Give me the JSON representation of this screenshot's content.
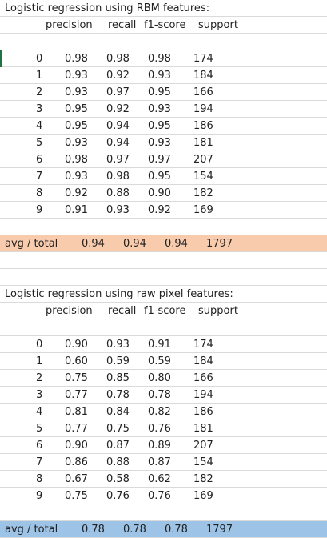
{
  "colors": {
    "avg_row_1": "#f8cbad",
    "avg_row_2": "#9dc3e6",
    "grid": "#dadada",
    "cursor": "#217346"
  },
  "sections": [
    {
      "title": "Logistic regression using RBM features:",
      "headers": [
        "precision",
        "recall",
        "f1-score",
        "support"
      ],
      "rows": [
        [
          "0",
          "0.98",
          "0.98",
          "0.98",
          "174"
        ],
        [
          "1",
          "0.93",
          "0.92",
          "0.93",
          "184"
        ],
        [
          "2",
          "0.93",
          "0.97",
          "0.95",
          "166"
        ],
        [
          "3",
          "0.95",
          "0.92",
          "0.93",
          "194"
        ],
        [
          "4",
          "0.95",
          "0.94",
          "0.95",
          "186"
        ],
        [
          "5",
          "0.93",
          "0.94",
          "0.93",
          "181"
        ],
        [
          "6",
          "0.98",
          "0.97",
          "0.97",
          "207"
        ],
        [
          "7",
          "0.93",
          "0.98",
          "0.95",
          "154"
        ],
        [
          "8",
          "0.92",
          "0.88",
          "0.90",
          "182"
        ],
        [
          "9",
          "0.91",
          "0.93",
          "0.92",
          "169"
        ]
      ],
      "avg": [
        "avg / total",
        "0.94",
        "0.94",
        "0.94",
        "1797"
      ]
    },
    {
      "title": "Logistic regression using raw pixel features:",
      "headers": [
        "precision",
        "recall",
        "f1-score",
        "support"
      ],
      "rows": [
        [
          "0",
          "0.90",
          "0.93",
          "0.91",
          "174"
        ],
        [
          "1",
          "0.60",
          "0.59",
          "0.59",
          "184"
        ],
        [
          "2",
          "0.75",
          "0.85",
          "0.80",
          "166"
        ],
        [
          "3",
          "0.77",
          "0.78",
          "0.78",
          "194"
        ],
        [
          "4",
          "0.81",
          "0.84",
          "0.82",
          "186"
        ],
        [
          "5",
          "0.77",
          "0.75",
          "0.76",
          "181"
        ],
        [
          "6",
          "0.90",
          "0.87",
          "0.89",
          "207"
        ],
        [
          "7",
          "0.86",
          "0.88",
          "0.87",
          "154"
        ],
        [
          "8",
          "0.67",
          "0.58",
          "0.62",
          "182"
        ],
        [
          "9",
          "0.75",
          "0.76",
          "0.76",
          "169"
        ]
      ],
      "avg": [
        "avg / total",
        "0.78",
        "0.78",
        "0.78",
        "1797"
      ]
    }
  ]
}
